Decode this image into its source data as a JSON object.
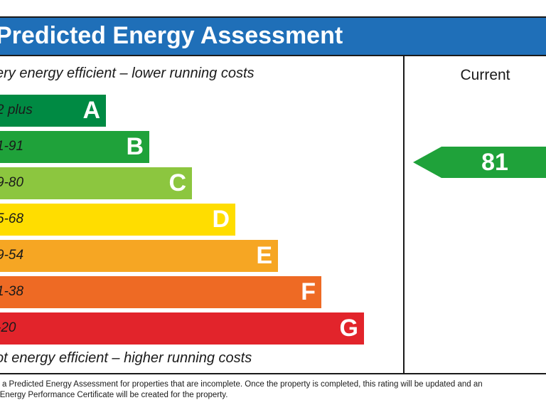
{
  "title": "Predicted Energy Assessment",
  "efficient_note": "ery energy efficient – lower running costs",
  "inefficient_note": "ot energy efficient – higher running costs",
  "current_label": "Current",
  "footnote": {
    "line1": "s a Predicted Energy Assessment for properties that are incomplete. Once the property is completed, this rating will be updated and an",
    "line2": "l Energy Performance Certificate will be created for the property."
  },
  "chart_data": {
    "type": "bar",
    "title": "Predicted Energy Assessment",
    "categories": [
      "A",
      "B",
      "C",
      "D",
      "E",
      "F",
      "G"
    ],
    "range_labels": [
      "2 plus",
      "1-91",
      "9-80",
      "5-68",
      "9-54",
      "1-38",
      "-20"
    ],
    "colors": [
      "#008a43",
      "#1fa23a",
      "#8cc63f",
      "#ffdd00",
      "#f6a623",
      "#ee6a24",
      "#e2242b"
    ],
    "current": {
      "value": 81,
      "band": "B",
      "color": "#1fa23a"
    }
  }
}
